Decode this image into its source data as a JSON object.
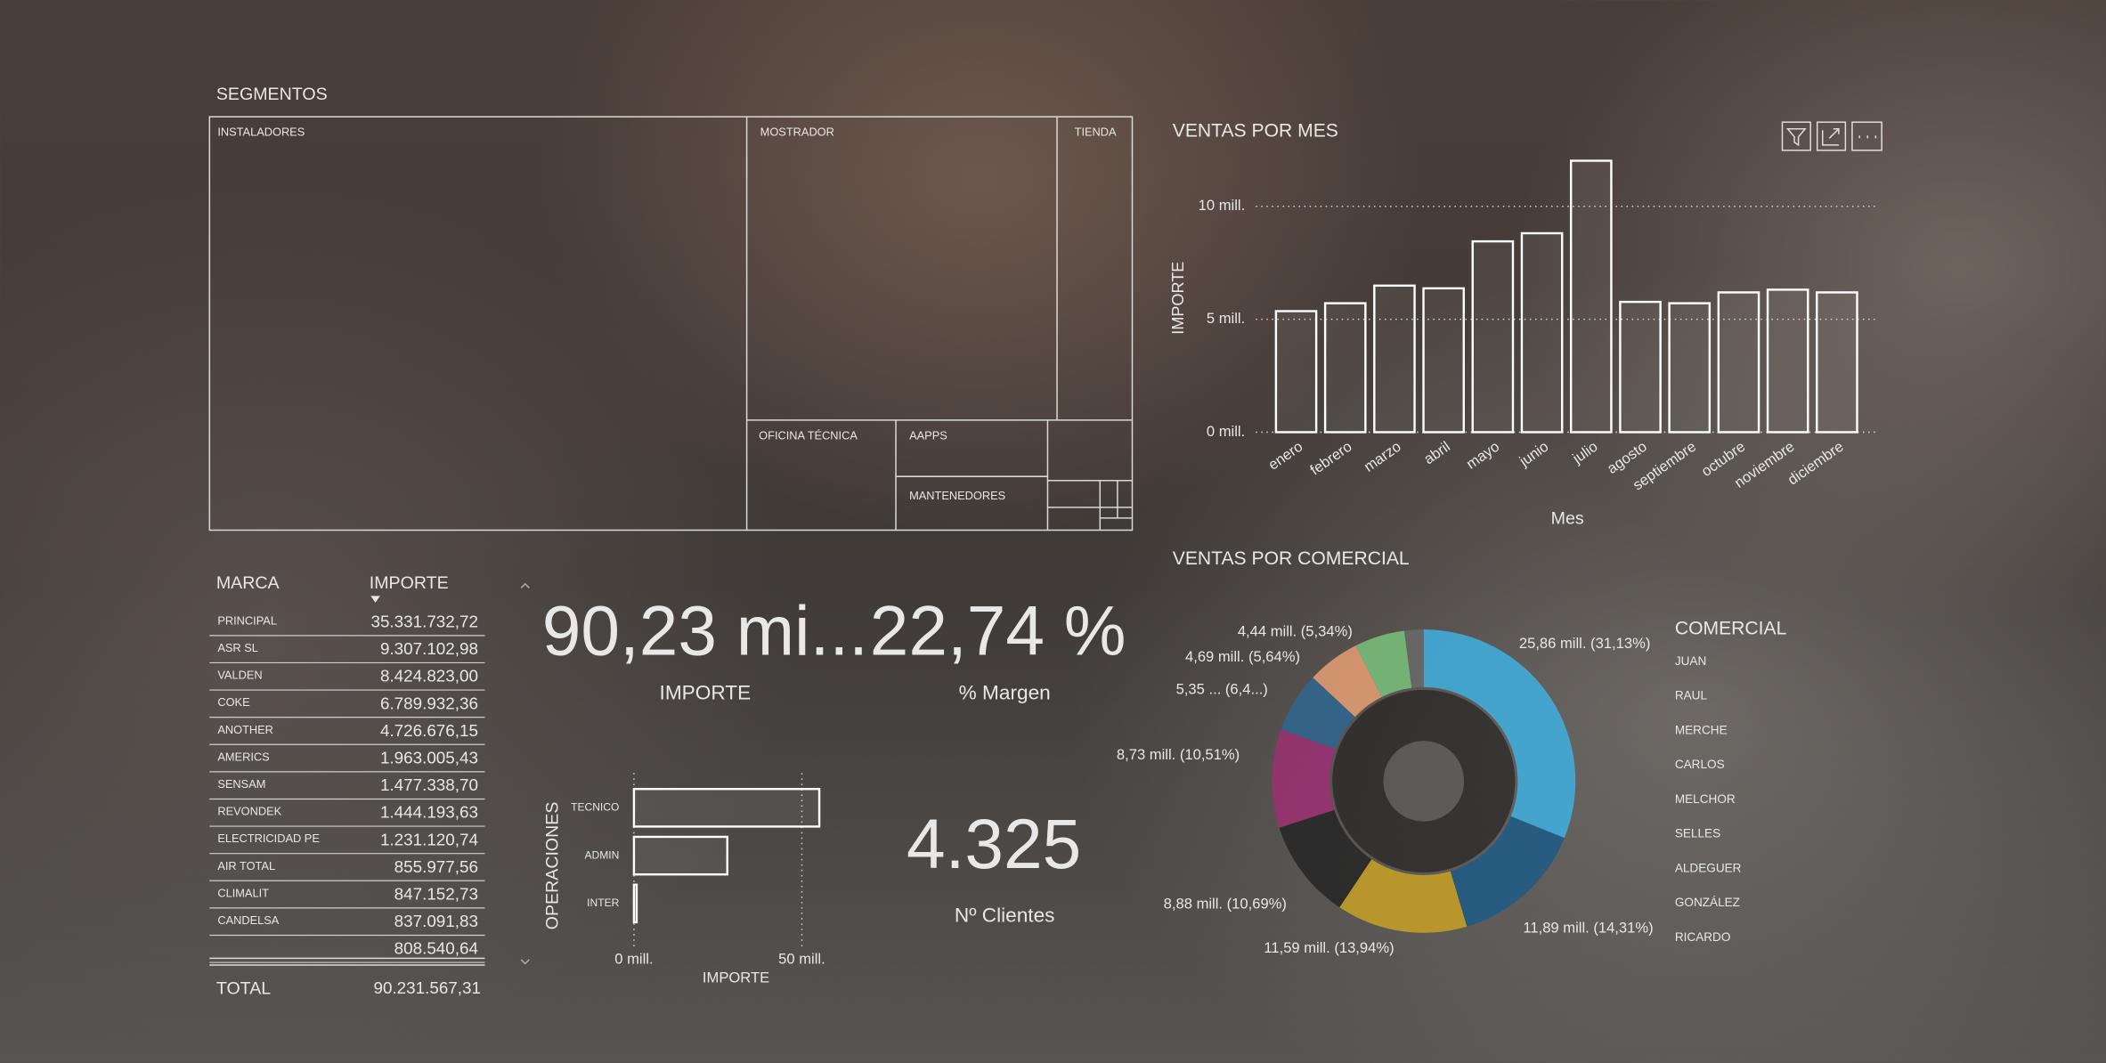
{
  "treemap": {
    "title": "SEGMENTOS",
    "nodes": [
      "INSTALADORES",
      "MOSTRADOR",
      "TIENDA",
      "OFICINA TÉCNICA",
      "AAPPS",
      "MANTENEDORES"
    ]
  },
  "table": {
    "columns": [
      "MARCA",
      "IMPORTE"
    ],
    "rows": [
      [
        "PRINCIPAL",
        "35.331.732,72"
      ],
      [
        "ASR SL",
        "9.307.102,98"
      ],
      [
        "VALDEN",
        "8.424.823,00"
      ],
      [
        "COKE",
        "6.789.932,36"
      ],
      [
        "ANOTHER",
        "4.726.676,15"
      ],
      [
        "AMERICS",
        "1.963.005,43"
      ],
      [
        "SENSAM",
        "1.477.338,70"
      ],
      [
        "REVONDEK",
        "1.444.193,63"
      ],
      [
        "ELECTRICIDAD PE",
        "1.231.120,74"
      ],
      [
        "AIR TOTAL",
        "855.977,56"
      ],
      [
        "CLIMALIT",
        "847.152,73"
      ],
      [
        "CANDELSA",
        "837.091,83"
      ],
      [
        null,
        "808.540,64"
      ]
    ],
    "total": [
      "TOTAL",
      "90.231.567,31"
    ]
  },
  "kpis": [
    {
      "value": "90,23 mi...",
      "label": "IMPORTE"
    },
    {
      "value": "22,74 %",
      "label": "% Margen"
    },
    {
      "value": "4.325",
      "label": "Nº Clientes"
    }
  ],
  "chart_data": [
    {
      "type": "bar",
      "orientation": "vertical",
      "title": "VENTAS POR MES",
      "x_label": "Mes",
      "y_label": "IMPORTE",
      "categories": [
        "enero",
        "febrero",
        "marzo",
        "abril",
        "mayo",
        "junio",
        "julio",
        "agosto",
        "septiembre",
        "octubre",
        "noviembre",
        "diciembre"
      ],
      "values": [
        5.36,
        5.71,
        6.49,
        6.37,
        8.45,
        8.81,
        12.02,
        5.77,
        5.71,
        6.19,
        6.31,
        6.19
      ],
      "ylim": [
        0,
        12.6
      ],
      "yticks": [
        {
          "value": 0,
          "label": "0 mill."
        },
        {
          "value": 5,
          "label": "5 mill."
        },
        {
          "value": 10,
          "label": "10 mill."
        }
      ],
      "grid": true,
      "color": "#ffffff"
    },
    {
      "type": "bar",
      "orientation": "horizontal",
      "x_label": "IMPORTE",
      "y_label": "OPERACIONES",
      "categories": [
        "TECNICO",
        "ADMIN",
        "INTER"
      ],
      "values": [
        55.2,
        27.8,
        0.8
      ],
      "xlim": [
        0,
        56
      ],
      "xticks": [
        {
          "value": 0,
          "label": "0 mill."
        },
        {
          "value": 50,
          "label": "50 mill."
        }
      ],
      "grid": true,
      "color": "#ffffff"
    },
    {
      "type": "pie",
      "donut": true,
      "title": "VENTAS POR COMERCIAL",
      "legend_title": "COMERCIAL",
      "categories": [
        "JUAN",
        "RAUL",
        "MERCHE",
        "CARLOS",
        "MELCHOR",
        "SELLES",
        "ALDEGUER",
        "GONZÁLEZ",
        "RICARDO"
      ],
      "values": [
        25.86,
        11.89,
        11.59,
        8.88,
        8.73,
        5.35,
        4.69,
        4.44,
        1.7
      ],
      "value_labels": [
        "25,86 mill. (31,13%)",
        "11,89 mill. (14,31%)",
        "11,59 mill. (13,94%)",
        "8,88 mill. (10,69%)",
        "8,73 mill. (10,51%)",
        "5,35 ... (6,4...)",
        "4,69 mill. (5,64%)",
        "4,44 mill. (5,34%)",
        null
      ],
      "colors": [
        "#3fb0e0",
        "#1d5a86",
        "#c9a125",
        "#262626",
        "#9c2f72",
        "#2f6690",
        "#e79f74",
        "#79c27a",
        "#6a6a6a"
      ]
    }
  ]
}
